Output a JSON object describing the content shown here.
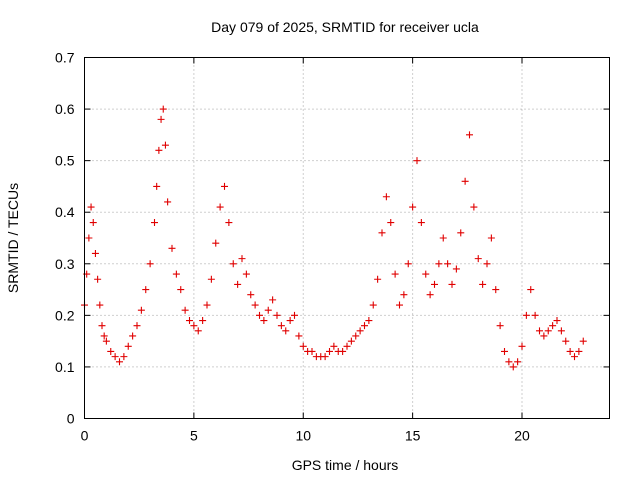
{
  "chart_data": {
    "type": "scatter",
    "title": "Day 079 of 2025, SRMTID for receiver ucla",
    "xlabel": "GPS time / hours",
    "ylabel": "SRMTID / TECUs",
    "xlim": [
      0,
      24
    ],
    "ylim": [
      0,
      0.7
    ],
    "x_ticks": [
      0,
      5,
      10,
      15,
      20
    ],
    "x_tick_labels": [
      "0",
      "5",
      "10",
      "15",
      "20"
    ],
    "y_ticks": [
      0,
      0.1,
      0.2,
      0.3,
      0.4,
      0.5,
      0.6,
      0.7
    ],
    "y_tick_labels": [
      "0",
      "0.1",
      "0.2",
      "0.3",
      "0.4",
      "0.5",
      "0.6",
      "0.7"
    ],
    "grid": true,
    "marker": "plus",
    "color": "#e00000",
    "series": [
      {
        "name": "ucla",
        "x": [
          0.0,
          0.1,
          0.2,
          0.3,
          0.4,
          0.5,
          0.6,
          0.7,
          0.8,
          0.9,
          1.0,
          1.2,
          1.4,
          1.6,
          1.8,
          2.0,
          2.2,
          2.4,
          2.6,
          2.8,
          3.0,
          3.2,
          3.3,
          3.4,
          3.5,
          3.6,
          3.7,
          3.8,
          4.0,
          4.2,
          4.4,
          4.6,
          4.8,
          5.0,
          5.2,
          5.4,
          5.6,
          5.8,
          6.0,
          6.2,
          6.4,
          6.6,
          6.8,
          7.0,
          7.2,
          7.4,
          7.6,
          7.8,
          8.0,
          8.2,
          8.4,
          8.6,
          8.8,
          9.0,
          9.2,
          9.4,
          9.6,
          9.8,
          10.0,
          10.2,
          10.4,
          10.6,
          10.8,
          11.0,
          11.2,
          11.4,
          11.6,
          11.8,
          12.0,
          12.2,
          12.4,
          12.6,
          12.8,
          13.0,
          13.2,
          13.4,
          13.6,
          13.8,
          14.0,
          14.2,
          14.4,
          14.6,
          14.8,
          15.0,
          15.2,
          15.4,
          15.6,
          15.8,
          16.0,
          16.2,
          16.4,
          16.6,
          16.8,
          17.0,
          17.2,
          17.4,
          17.6,
          17.8,
          18.0,
          18.2,
          18.4,
          18.6,
          18.8,
          19.0,
          19.2,
          19.4,
          19.6,
          19.8,
          20.0,
          20.2,
          20.4,
          20.6,
          20.8,
          21.0,
          21.2,
          21.4,
          21.6,
          21.8,
          22.0,
          22.2,
          22.4,
          22.6,
          22.8
        ],
        "y": [
          0.22,
          0.28,
          0.35,
          0.41,
          0.38,
          0.32,
          0.27,
          0.22,
          0.18,
          0.16,
          0.15,
          0.13,
          0.12,
          0.11,
          0.12,
          0.14,
          0.16,
          0.18,
          0.21,
          0.25,
          0.3,
          0.38,
          0.45,
          0.52,
          0.58,
          0.6,
          0.53,
          0.42,
          0.33,
          0.28,
          0.25,
          0.21,
          0.19,
          0.18,
          0.17,
          0.19,
          0.22,
          0.27,
          0.34,
          0.41,
          0.45,
          0.38,
          0.3,
          0.26,
          0.31,
          0.28,
          0.24,
          0.22,
          0.2,
          0.19,
          0.21,
          0.23,
          0.2,
          0.18,
          0.17,
          0.19,
          0.2,
          0.16,
          0.14,
          0.13,
          0.13,
          0.12,
          0.12,
          0.12,
          0.13,
          0.14,
          0.13,
          0.13,
          0.14,
          0.15,
          0.16,
          0.17,
          0.18,
          0.19,
          0.22,
          0.27,
          0.36,
          0.43,
          0.38,
          0.28,
          0.22,
          0.24,
          0.3,
          0.41,
          0.5,
          0.38,
          0.28,
          0.24,
          0.26,
          0.3,
          0.35,
          0.3,
          0.26,
          0.29,
          0.36,
          0.46,
          0.55,
          0.41,
          0.31,
          0.26,
          0.3,
          0.35,
          0.25,
          0.18,
          0.13,
          0.11,
          0.1,
          0.11,
          0.14,
          0.2,
          0.25,
          0.2,
          0.17,
          0.16,
          0.17,
          0.18,
          0.19,
          0.17,
          0.15,
          0.13,
          0.12,
          0.13,
          0.15
        ]
      }
    ]
  }
}
